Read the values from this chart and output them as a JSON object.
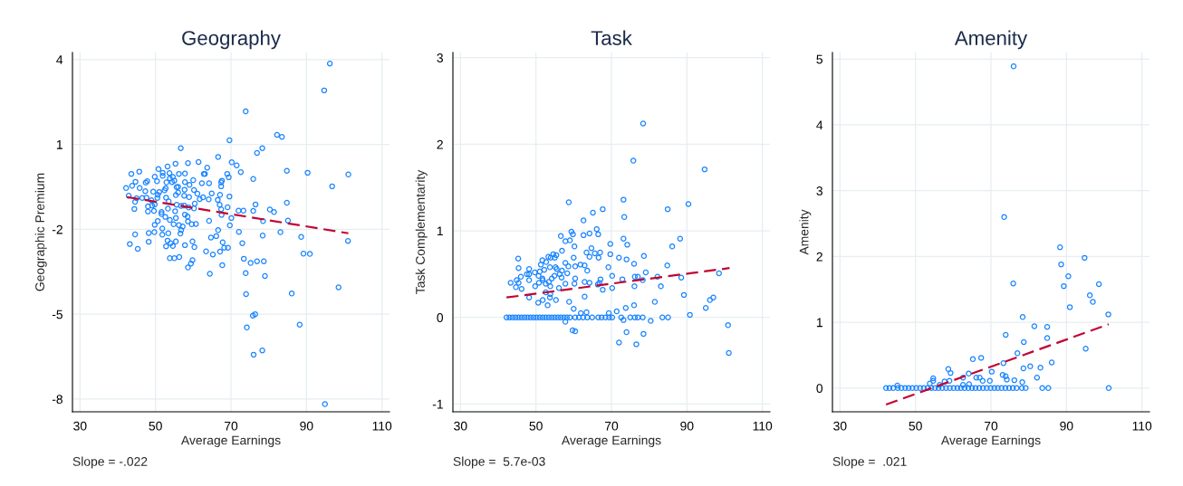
{
  "chart_data": [
    {
      "type": "scatter",
      "title": "Geography",
      "xlabel": "Average Earnings",
      "ylabel": "Geographic Premium",
      "xlim": [
        28,
        112
      ],
      "xticks": [
        30,
        50,
        70,
        90,
        110
      ],
      "ylim": [
        -8.45,
        4.25
      ],
      "yticks": [
        4,
        1,
        -2,
        -5,
        -8
      ],
      "grid": true,
      "marker": "circle",
      "annotations": [
        "Slope = -.022"
      ],
      "series": [
        {
          "type": "scatter",
          "color": "#1a85ff",
          "x": [
            96.2,
            94.7,
            73.9,
            82.2,
            83.5,
            69.6,
            56.7,
            78.3,
            76.9,
            66.6,
            58.6,
            61.4,
            70.2,
            71.5,
            84.8,
            90.3,
            101.1,
            96.8,
            75.9,
            72.6,
            53.2,
            50.8,
            45.7,
            43.6,
            42.2,
            44.4,
            48.0,
            49.6,
            62.8,
            64.2,
            64.9,
            69.6,
            76.5,
            80.3,
            81.4,
            84.8,
            85.1,
            72.0,
            73.3,
            75.9,
            78.5,
            69.7,
            83.1,
            88.6,
            101.0,
            89.2,
            90.9,
            78.4,
            72.1,
            73.0,
            73.4,
            75.2,
            76.9,
            78.7,
            73.9,
            79.0,
            74.0,
            86.1,
            98.5,
            75.8,
            76.4,
            74.2,
            88.2,
            76.0,
            78.3,
            94.9,
            67.7,
            64.4,
            65.2,
            67.1,
            68.2,
            69.2,
            67.8,
            66.1,
            64.7,
            66.6,
            63.4,
            59.8,
            59.4,
            58.6,
            56.3,
            55.0,
            53.8,
            52.8,
            54.6,
            57.8,
            60.3,
            59.8,
            55.4,
            54.0,
            53.2,
            51.8,
            49.7,
            48.2,
            48.2,
            45.3,
            43.2,
            44.6,
            56.6,
            56.8,
            53.4,
            54.8,
            49.8,
            50.6,
            51.8,
            53.8,
            56.2,
            57.2,
            58.6,
            59.6,
            60.7,
            64.2,
            58.5,
            57.8,
            55.4,
            52.6,
            51.6,
            51.6,
            55.2,
            53.3,
            56.8,
            60.2,
            58.8,
            60.4,
            57.6,
            55.6,
            53.5,
            49.8,
            48.0,
            49.1,
            44.6,
            45.0,
            46.5,
            42.9,
            47.6,
            48.9,
            50.5,
            52.8,
            55.4,
            56.0,
            57.6,
            58.9,
            61.7,
            62.6,
            64.1,
            66.5,
            67.1,
            67.0,
            67.4,
            67.5,
            69.1,
            70.1,
            61.1,
            60.2,
            59.0,
            57.8,
            62.3,
            63.1,
            63.7,
            67.4,
            67.6,
            67.4,
            69.0,
            69.4,
            57.8,
            56.2,
            55.0,
            54.4,
            56.0,
            52.4,
            51.0,
            50.6,
            49.4,
            47.3,
            45.8,
            44.7,
            43.8,
            47.4,
            47.8,
            49.8,
            50.4,
            51.9,
            52.9,
            53.8,
            54.6,
            53.7,
            55.6,
            52.7,
            51.9,
            57.7,
            55.3,
            60.0
          ],
          "values": [
            3.86,
            2.91,
            2.17,
            1.34,
            1.27,
            1.15,
            0.87,
            0.87,
            0.7,
            0.56,
            0.34,
            0.38,
            0.37,
            0.26,
            0.07,
            0.0,
            -0.06,
            -0.48,
            -0.22,
            0.02,
            0.22,
            0.13,
            0.04,
            -0.04,
            -0.54,
            -1.28,
            -1.37,
            -1.35,
            -0.04,
            -0.37,
            -0.73,
            -0.84,
            -1.12,
            -1.3,
            -1.39,
            -1.06,
            -1.69,
            -1.34,
            -1.34,
            -1.35,
            -1.71,
            -1.86,
            -2.1,
            -2.27,
            -2.41,
            -2.86,
            -2.87,
            -2.22,
            -2.09,
            -2.49,
            -3.04,
            -3.19,
            -3.13,
            -3.13,
            -3.55,
            -3.65,
            -4.29,
            -4.27,
            -4.05,
            -5.05,
            -5.0,
            -5.47,
            -5.37,
            -6.43,
            -6.28,
            -8.18,
            -3.27,
            -3.57,
            -2.89,
            -2.79,
            -2.65,
            -2.65,
            -2.46,
            -2.24,
            -2.29,
            -2.03,
            -2.78,
            -3.09,
            -3.21,
            -3.35,
            -2.98,
            -3.02,
            -3.02,
            -2.6,
            -2.59,
            -2.56,
            -2.63,
            -2.43,
            -2.43,
            -2.49,
            -2.4,
            -2.19,
            -2.1,
            -2.13,
            -2.44,
            -2.69,
            -2.52,
            -2.18,
            -2.15,
            -2.03,
            -2.14,
            -1.82,
            -1.84,
            -1.71,
            -1.97,
            -1.67,
            -1.85,
            -1.9,
            -1.72,
            -1.82,
            -1.81,
            -1.7,
            -1.55,
            -1.48,
            -1.6,
            -1.56,
            -1.46,
            -1.39,
            -1.36,
            -1.27,
            -1.17,
            -1.26,
            -1.23,
            -1.09,
            -1.16,
            -1.13,
            -1.01,
            -1.12,
            -1.19,
            -1.16,
            -1.03,
            -0.9,
            -0.89,
            -0.81,
            -0.88,
            -0.97,
            -0.89,
            -0.88,
            -0.79,
            -0.7,
            -0.81,
            -0.86,
            -0.93,
            -0.87,
            -0.94,
            -0.96,
            -0.78,
            -1.13,
            -1.29,
            -1.49,
            -1.22,
            -1.6,
            -0.74,
            -0.61,
            -0.43,
            -0.33,
            -0.37,
            -0.04,
            0.18,
            -0.34,
            -0.28,
            -0.48,
            -0.04,
            -0.16,
            -0.03,
            -0.04,
            -0.28,
            -0.33,
            -0.5,
            -0.62,
            -0.68,
            -0.78,
            -0.67,
            -0.65,
            -0.54,
            -0.32,
            -0.46,
            -0.35,
            -0.3,
            -0.14,
            -0.3,
            -0.11,
            -0.34,
            -0.2,
            -0.15,
            -0.01,
            -0.51,
            -0.55,
            0.0,
            -0.6,
            0.32,
            -0.26
          ]
        },
        {
          "type": "line",
          "color": "#c10534",
          "line_style": "dashed",
          "marker": "none",
          "x": [
            42.4,
            101.1
          ],
          "values": [
            -0.86,
            -2.14
          ]
        }
      ]
    },
    {
      "type": "scatter",
      "title": "Task",
      "xlabel": "Average Earnings",
      "ylabel": "Task Complementarity",
      "xlim": [
        28,
        112
      ],
      "xticks": [
        30,
        50,
        70,
        90,
        110
      ],
      "ylim": [
        -1.09,
        3.06
      ],
      "yticks": [
        3,
        2,
        1,
        0,
        -1
      ],
      "grid": true,
      "marker": "circle",
      "annotations": [
        "Slope =  5.7e-03"
      ],
      "series": [
        {
          "type": "scatter",
          "color": "#1a85ff",
          "x": [
            78.4,
            75.8,
            94.7,
            58.7,
            73.2,
            73.4,
            67.7,
            65.1,
            62.6,
            84.9,
            90.4,
            66.1,
            66.5,
            64.2,
            62.6,
            59.4,
            59.8,
            56.6,
            57.8,
            59.0,
            60.2,
            56.9,
            64.7,
            63.4,
            65.6,
            67.0,
            64.2,
            66.6,
            69.7,
            69.7,
            73.2,
            74.2,
            72.0,
            74.0,
            76.0,
            78.6,
            88.2,
            86.1,
            84.8,
            88.5,
            89.2,
            98.5,
            97.0,
            96.1,
            95.0,
            90.8,
            100.9,
            101.1,
            82.2,
            83.1,
            81.5,
            79.1,
            78.3,
            77.0,
            76.2,
            76.1,
            76.0,
            73.8,
            72.9,
            70.2,
            69.2,
            70.2,
            67.7,
            67.1,
            66.4,
            66.8,
            64.2,
            62.9,
            63.6,
            62.9,
            61.8,
            60.4,
            60.0,
            58.6,
            58.3,
            57.8,
            56.9,
            56.3,
            56.8,
            56.1,
            55.3,
            58.8,
            60.0,
            62.9,
            61.9,
            63.4,
            60.4,
            60.2,
            57.8,
            55.4,
            54.6,
            55.0,
            53.9,
            53.3,
            51.7,
            52.7,
            51.3,
            51.0,
            50.7,
            51.7,
            50.8,
            51.8,
            52.6,
            53.4,
            53.8,
            54.2,
            54.9,
            55.2,
            55.5,
            53.7,
            52.2,
            49.7,
            48.2,
            48.2,
            47.6,
            46.0,
            44.9,
            45.4,
            43.3,
            44.7,
            46.2,
            48.2,
            49.8,
            45.3,
            45.4,
            48.2,
            50.6,
            51.8,
            53.1,
            53.7,
            52.6,
            53.8,
            71.4,
            69.3,
            59.7,
            60.4,
            57.8,
            72.0,
            74.0,
            76.6,
            78.5,
            80.4,
            73.2,
            42.2,
            43.0,
            43.8,
            44.6,
            45.4,
            46.2,
            47.0,
            47.8,
            48.6,
            49.4,
            50.2,
            51.0,
            51.8,
            52.6,
            53.4,
            54.2,
            55.0,
            55.8,
            56.6,
            57.4,
            58.2,
            59.0,
            60.4,
            61.4,
            62.5,
            63.6,
            64.9,
            66.5,
            67.4,
            68.4,
            69.4,
            70.2,
            72.6,
            75.0,
            76.2,
            77.0,
            78.3,
            83.5,
            85.0
          ],
          "values": [
            2.24,
            1.81,
            1.71,
            1.33,
            1.36,
            1.16,
            1.25,
            1.21,
            1.12,
            1.25,
            1.31,
            1.02,
            0.96,
            0.97,
            0.95,
            0.99,
            0.96,
            0.94,
            0.88,
            0.89,
            0.82,
            0.77,
            0.8,
            0.75,
            0.74,
            0.75,
            0.7,
            0.69,
            0.85,
            0.73,
            0.91,
            0.84,
            0.69,
            0.67,
            0.62,
            0.71,
            0.91,
            0.82,
            0.6,
            0.46,
            0.26,
            0.51,
            0.23,
            0.2,
            0.11,
            0.03,
            -0.09,
            -0.41,
            0.47,
            0.36,
            0.18,
            0.52,
            0.43,
            0.47,
            0.47,
            0.36,
            0.14,
            0.11,
            0.44,
            0.48,
            0.58,
            0.34,
            0.32,
            0.44,
            0.38,
            0.4,
            0.4,
            0.41,
            0.54,
            0.6,
            0.61,
            0.59,
            0.69,
            0.59,
            0.51,
            0.63,
            0.54,
            0.5,
            0.46,
            0.34,
            0.2,
            0.18,
            0.1,
            0.24,
            0.05,
            0.06,
            0.45,
            0.39,
            0.39,
            0.72,
            0.73,
            0.69,
            0.69,
            0.7,
            0.66,
            0.64,
            0.61,
            0.53,
            0.48,
            0.45,
            0.4,
            0.43,
            0.39,
            0.41,
            0.36,
            0.45,
            0.48,
            0.58,
            0.56,
            0.58,
            0.55,
            0.52,
            0.56,
            0.5,
            0.5,
            0.47,
            0.43,
            0.4,
            0.4,
            0.35,
            0.33,
            0.43,
            0.36,
            0.68,
            0.57,
            0.23,
            0.17,
            0.2,
            0.14,
            0.23,
            0.29,
            0.27,
            0.07,
            0.05,
            -0.15,
            -0.16,
            -0.05,
            -0.29,
            -0.17,
            -0.31,
            -0.19,
            -0.04,
            -0.03,
            0,
            0,
            0,
            0,
            0,
            0,
            0,
            0,
            0,
            0,
            0,
            0,
            0,
            0,
            0,
            0,
            0,
            0,
            0,
            0,
            0,
            0,
            0,
            0,
            0,
            0,
            0,
            0,
            0,
            0,
            0,
            0,
            0,
            0,
            0,
            0,
            0,
            0,
            0
          ]
        },
        {
          "type": "line",
          "color": "#c10534",
          "line_style": "dashed",
          "marker": "none",
          "x": [
            42.2,
            101.3
          ],
          "values": [
            0.23,
            0.57
          ]
        }
      ]
    },
    {
      "type": "scatter",
      "title": "Amenity",
      "xlabel": "Average Earnings",
      "ylabel": "Amenity",
      "xlim": [
        28,
        112
      ],
      "xticks": [
        30,
        50,
        70,
        90,
        110
      ],
      "ylim": [
        -0.36,
        5.1
      ],
      "yticks": [
        5,
        4,
        3,
        2,
        1,
        0
      ],
      "grid": true,
      "marker": "circle",
      "annotations": [
        "Slope =  .021"
      ],
      "series": [
        {
          "type": "scatter",
          "color": "#1a85ff",
          "x": [
            76.0,
            73.5,
            88.3,
            88.6,
            94.8,
            90.5,
            89.3,
            98.6,
            96.2,
            97.0,
            90.9,
            101.1,
            75.9,
            78.4,
            81.5,
            84.9,
            84.9,
            78.7,
            73.9,
            95.1,
            77.0,
            86.1,
            80.4,
            78.6,
            83.1,
            73.3,
            70.2,
            65.2,
            67.4,
            82.2,
            73.1,
            73.9,
            74.2,
            76.2,
            69.7,
            78.3,
            64.1,
            62.6,
            66.1,
            67.0,
            67.8,
            64.2,
            62.6,
            58.7,
            59.3,
            59.0,
            57.7,
            56.4,
            54.7,
            54.7,
            53.8,
            45.2,
            101.2,
            83.6,
            85.2,
            79.2,
            78.2,
            42.2,
            43.1,
            44.1,
            45.3,
            46.3,
            47.3,
            48.2,
            49.2,
            50.2,
            51.2,
            52.2,
            53.2,
            54.2,
            55.2,
            56.1,
            57.1,
            58.1,
            59.1,
            60.1,
            61.1,
            62.0,
            63.0,
            64.0,
            65.0,
            65.9,
            66.9,
            67.9,
            68.9,
            69.9,
            70.9,
            71.8,
            72.8,
            73.8,
            74.8,
            75.8,
            76.8
          ],
          "values": [
            4.89,
            2.6,
            2.14,
            1.88,
            1.98,
            1.7,
            1.55,
            1.58,
            1.41,
            1.31,
            1.23,
            1.12,
            1.59,
            1.08,
            0.94,
            0.93,
            0.76,
            0.7,
            0.81,
            0.6,
            0.53,
            0.39,
            0.33,
            0.3,
            0.31,
            0.38,
            0.25,
            0.44,
            0.46,
            0.16,
            0.2,
            0.18,
            0.13,
            0.12,
            0.11,
            0.09,
            0.22,
            0.16,
            0.16,
            0.16,
            0.11,
            0.06,
            0.05,
            0.29,
            0.23,
            0.11,
            0.1,
            0.05,
            0.15,
            0.11,
            0.07,
            0.04,
            0,
            0,
            0,
            0,
            0,
            0,
            0,
            0,
            0,
            0,
            0,
            0,
            0,
            0,
            0,
            0,
            0,
            0,
            0,
            0,
            0,
            0,
            0,
            0,
            0,
            0,
            0,
            0,
            0,
            0,
            0,
            0,
            0,
            0,
            0,
            0,
            0,
            0,
            0,
            0,
            0
          ]
        },
        {
          "type": "line",
          "color": "#c10534",
          "line_style": "dashed",
          "marker": "none",
          "x": [
            42.2,
            101.2
          ],
          "values": [
            -0.25,
            0.97
          ]
        }
      ]
    }
  ]
}
